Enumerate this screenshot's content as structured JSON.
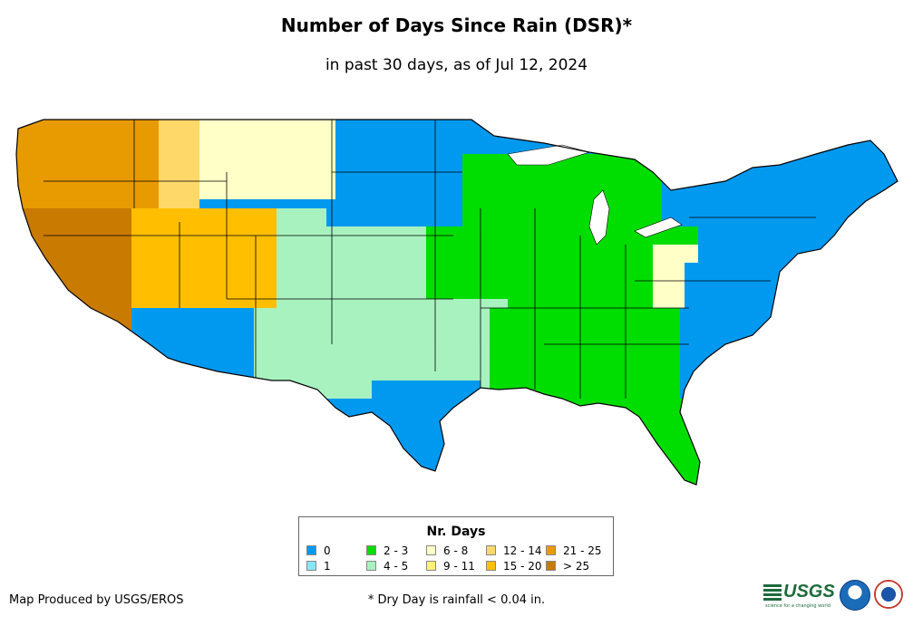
{
  "header": {
    "title": "Number of Days Since Rain (DSR)*",
    "subtitle": "in past 30 days, as of Jul 12, 2024"
  },
  "legend": {
    "title": "Nr. Days",
    "items": [
      {
        "label": "0",
        "color": "#0099f0"
      },
      {
        "label": "1",
        "color": "#88e6f8"
      },
      {
        "label": "2 - 3",
        "color": "#00dd00"
      },
      {
        "label": "4 - 5",
        "color": "#a8f2c0"
      },
      {
        "label": "6 - 8",
        "color": "#ffffc8"
      },
      {
        "label": "9 - 11",
        "color": "#fff07a"
      },
      {
        "label": "12 - 14",
        "color": "#ffd86a"
      },
      {
        "label": "15 - 20",
        "color": "#ffbf00"
      },
      {
        "label": "21 - 25",
        "color": "#e89b00"
      },
      {
        "label": "> 25",
        "color": "#c97a00"
      }
    ]
  },
  "footer": {
    "credit": "Map Produced by USGS/EROS",
    "footnote": "* Dry Day is rainfall < 0.04 in.",
    "logo_usgs": "USGS",
    "logo_usgs_tagline": "science for a changing world"
  },
  "regions": [
    {
      "name": "pacific-coast",
      "class": "> 25"
    },
    {
      "name": "great-basin",
      "class": "15 - 20"
    },
    {
      "name": "pacific-northwest",
      "class": "21 - 25"
    },
    {
      "name": "northern-rockies",
      "class": "12 - 14"
    },
    {
      "name": "northern-plains",
      "class": "6 - 8"
    },
    {
      "name": "upper-midwest",
      "class": "0"
    },
    {
      "name": "central-plains",
      "class": "4 - 5"
    },
    {
      "name": "midwest",
      "class": "2 - 3"
    },
    {
      "name": "southern-plains",
      "class": "4 - 5"
    },
    {
      "name": "southeast",
      "class": "2 - 3"
    },
    {
      "name": "texas-gulf",
      "class": "0"
    },
    {
      "name": "atlantic-coast",
      "class": "0"
    },
    {
      "name": "northeast",
      "class": "0"
    },
    {
      "name": "ohio-valley",
      "class": "2 - 3"
    },
    {
      "name": "appalachians",
      "class": "6 - 8"
    },
    {
      "name": "florida",
      "class": "2 - 3"
    }
  ]
}
